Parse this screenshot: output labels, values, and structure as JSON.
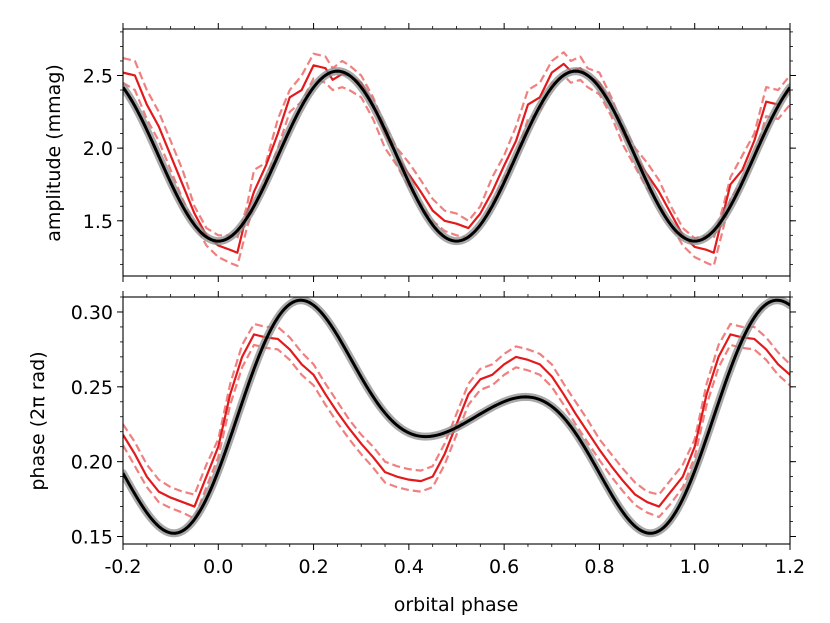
{
  "chart_data": [
    {
      "type": "line",
      "ylabel": "amplitude (mmag)",
      "xlim": [
        -0.2,
        1.2
      ],
      "ylim": [
        1.12,
        2.82
      ],
      "yticks": [
        1.5,
        2.0,
        2.5
      ],
      "ytick_labels": [
        "1.5",
        "2.0",
        "2.5"
      ],
      "xtick_labels_shown": false,
      "series": [
        {
          "role": "observed",
          "color": "#e31a1c",
          "style": "solid",
          "x": [
            -0.2,
            -0.175,
            -0.15,
            -0.125,
            -0.1,
            -0.075,
            -0.05,
            -0.025,
            0.0,
            0.025,
            0.04,
            0.06,
            0.075,
            0.1,
            0.125,
            0.15,
            0.175,
            0.2,
            0.225,
            0.24,
            0.26,
            0.275,
            0.3,
            0.325,
            0.35,
            0.375,
            0.4,
            0.425,
            0.45,
            0.475,
            0.5,
            0.525,
            0.55,
            0.575,
            0.6,
            0.625,
            0.65,
            0.675,
            0.7,
            0.725,
            0.74,
            0.76,
            0.775,
            0.8,
            0.825,
            0.85,
            0.875,
            0.9,
            0.925,
            0.95,
            0.975,
            1.0,
            1.025,
            1.04,
            1.06,
            1.075,
            1.1,
            1.125,
            1.15,
            1.175,
            1.2
          ],
          "y": [
            2.52,
            2.5,
            2.3,
            2.15,
            1.95,
            1.75,
            1.55,
            1.4,
            1.33,
            1.3,
            1.28,
            1.55,
            1.7,
            1.88,
            2.1,
            2.35,
            2.4,
            2.57,
            2.55,
            2.47,
            2.51,
            2.5,
            2.45,
            2.3,
            2.1,
            1.95,
            1.82,
            1.7,
            1.57,
            1.5,
            1.48,
            1.45,
            1.55,
            1.7,
            1.88,
            2.05,
            2.3,
            2.35,
            2.52,
            2.58,
            2.53,
            2.55,
            2.5,
            2.45,
            2.3,
            2.1,
            1.95,
            1.82,
            1.7,
            1.55,
            1.4,
            1.32,
            1.3,
            1.28,
            1.55,
            1.75,
            1.85,
            2.05,
            2.32,
            2.3,
            2.4
          ]
        },
        {
          "role": "observed-upper",
          "color": "#f08080",
          "style": "dashed",
          "x": [
            -0.2,
            -0.175,
            -0.15,
            -0.125,
            -0.1,
            -0.075,
            -0.05,
            -0.025,
            0.0,
            0.025,
            0.04,
            0.06,
            0.075,
            0.1,
            0.125,
            0.15,
            0.175,
            0.2,
            0.225,
            0.24,
            0.26,
            0.275,
            0.3,
            0.325,
            0.35,
            0.375,
            0.4,
            0.425,
            0.45,
            0.475,
            0.5,
            0.525,
            0.55,
            0.575,
            0.6,
            0.625,
            0.65,
            0.675,
            0.7,
            0.725,
            0.74,
            0.76,
            0.775,
            0.8,
            0.825,
            0.85,
            0.875,
            0.9,
            0.925,
            0.95,
            0.975,
            1.0,
            1.025,
            1.04,
            1.06,
            1.075,
            1.1,
            1.125,
            1.15,
            1.175,
            1.2
          ],
          "y": [
            2.62,
            2.6,
            2.4,
            2.25,
            2.05,
            1.85,
            1.6,
            1.45,
            1.4,
            1.4,
            1.38,
            1.6,
            1.85,
            1.9,
            2.2,
            2.4,
            2.5,
            2.65,
            2.63,
            2.55,
            2.6,
            2.57,
            2.5,
            2.35,
            2.15,
            2.0,
            1.9,
            1.78,
            1.65,
            1.57,
            1.55,
            1.5,
            1.6,
            1.8,
            1.95,
            2.15,
            2.4,
            2.45,
            2.6,
            2.66,
            2.6,
            2.63,
            2.55,
            2.52,
            2.35,
            2.15,
            2.0,
            1.9,
            1.78,
            1.6,
            1.45,
            1.38,
            1.4,
            1.38,
            1.6,
            1.8,
            1.95,
            2.1,
            2.42,
            2.4,
            2.5
          ]
        },
        {
          "role": "observed-lower",
          "color": "#f08080",
          "style": "dashed",
          "x": [
            -0.2,
            -0.175,
            -0.15,
            -0.125,
            -0.1,
            -0.075,
            -0.05,
            -0.025,
            0.0,
            0.025,
            0.04,
            0.06,
            0.075,
            0.1,
            0.125,
            0.15,
            0.175,
            0.2,
            0.225,
            0.24,
            0.26,
            0.275,
            0.3,
            0.325,
            0.35,
            0.375,
            0.4,
            0.425,
            0.45,
            0.475,
            0.5,
            0.525,
            0.55,
            0.575,
            0.6,
            0.625,
            0.65,
            0.675,
            0.7,
            0.725,
            0.74,
            0.76,
            0.775,
            0.8,
            0.825,
            0.85,
            0.875,
            0.9,
            0.925,
            0.95,
            0.975,
            1.0,
            1.025,
            1.04,
            1.06,
            1.075,
            1.1,
            1.125,
            1.15,
            1.175,
            1.2
          ],
          "y": [
            2.45,
            2.4,
            2.2,
            2.05,
            1.85,
            1.65,
            1.48,
            1.33,
            1.25,
            1.21,
            1.19,
            1.45,
            1.6,
            1.8,
            2.0,
            2.25,
            2.32,
            2.48,
            2.45,
            2.4,
            2.42,
            2.4,
            2.35,
            2.2,
            2.0,
            1.88,
            1.73,
            1.62,
            1.5,
            1.43,
            1.4,
            1.38,
            1.47,
            1.62,
            1.8,
            1.95,
            2.2,
            2.25,
            2.45,
            2.5,
            2.45,
            2.47,
            2.42,
            2.37,
            2.22,
            2.02,
            1.87,
            1.72,
            1.62,
            1.47,
            1.33,
            1.25,
            1.21,
            1.19,
            1.45,
            1.65,
            1.78,
            1.95,
            2.22,
            2.2,
            2.3
          ]
        },
        {
          "role": "model",
          "color": "#000000",
          "style": "solid-with-grey-halo",
          "mean": 1.945,
          "amplitude": 0.585,
          "frequency": 2,
          "phase_offset": -0.015,
          "y_at_endpoints": [
            2.47,
            2.42
          ]
        }
      ]
    },
    {
      "type": "line",
      "xlabel": "orbital phase",
      "ylabel": "phase (2π rad)",
      "xlim": [
        -0.2,
        1.2
      ],
      "ylim": [
        0.145,
        0.31
      ],
      "yticks": [
        0.15,
        0.2,
        0.25,
        0.3
      ],
      "ytick_labels": [
        "0.15",
        "0.20",
        "0.25",
        "0.30"
      ],
      "xticks": [
        -0.2,
        0.0,
        0.2,
        0.4,
        0.6,
        0.8,
        1.0,
        1.2
      ],
      "xtick_labels": [
        "-0.2",
        "0.0",
        "0.2",
        "0.4",
        "0.6",
        "0.8",
        "1.0",
        "1.2"
      ],
      "series": [
        {
          "role": "observed",
          "color": "#e31a1c",
          "style": "solid",
          "x": [
            -0.2,
            -0.175,
            -0.15,
            -0.125,
            -0.1,
            -0.075,
            -0.05,
            -0.025,
            0.0,
            0.025,
            0.05,
            0.075,
            0.1,
            0.125,
            0.15,
            0.175,
            0.2,
            0.225,
            0.25,
            0.275,
            0.3,
            0.325,
            0.35,
            0.375,
            0.4,
            0.425,
            0.45,
            0.475,
            0.5,
            0.525,
            0.55,
            0.575,
            0.6,
            0.625,
            0.65,
            0.675,
            0.7,
            0.725,
            0.75,
            0.775,
            0.8,
            0.825,
            0.85,
            0.875,
            0.9,
            0.925,
            0.95,
            0.975,
            1.0,
            1.025,
            1.05,
            1.075,
            1.1,
            1.125,
            1.15,
            1.175,
            1.2
          ],
          "y": [
            0.218,
            0.205,
            0.19,
            0.18,
            0.176,
            0.173,
            0.17,
            0.19,
            0.21,
            0.245,
            0.27,
            0.285,
            0.283,
            0.282,
            0.275,
            0.265,
            0.258,
            0.245,
            0.233,
            0.222,
            0.212,
            0.203,
            0.193,
            0.19,
            0.188,
            0.187,
            0.19,
            0.205,
            0.225,
            0.245,
            0.255,
            0.258,
            0.265,
            0.27,
            0.268,
            0.265,
            0.257,
            0.245,
            0.232,
            0.22,
            0.208,
            0.197,
            0.187,
            0.178,
            0.173,
            0.17,
            0.18,
            0.19,
            0.21,
            0.245,
            0.27,
            0.285,
            0.283,
            0.282,
            0.275,
            0.265,
            0.258
          ]
        },
        {
          "role": "observed-upper",
          "color": "#f08080",
          "style": "dashed",
          "x": [
            -0.2,
            -0.175,
            -0.15,
            -0.125,
            -0.1,
            -0.075,
            -0.05,
            -0.025,
            0.0,
            0.025,
            0.05,
            0.075,
            0.1,
            0.125,
            0.15,
            0.175,
            0.2,
            0.225,
            0.25,
            0.275,
            0.3,
            0.325,
            0.35,
            0.375,
            0.4,
            0.425,
            0.45,
            0.475,
            0.5,
            0.525,
            0.55,
            0.575,
            0.6,
            0.625,
            0.65,
            0.675,
            0.7,
            0.725,
            0.75,
            0.775,
            0.8,
            0.825,
            0.85,
            0.875,
            0.9,
            0.925,
            0.95,
            0.975,
            1.0,
            1.025,
            1.05,
            1.075,
            1.1,
            1.125,
            1.15,
            1.175,
            1.2
          ],
          "y": [
            0.225,
            0.213,
            0.198,
            0.188,
            0.183,
            0.18,
            0.178,
            0.198,
            0.215,
            0.252,
            0.278,
            0.292,
            0.29,
            0.29,
            0.283,
            0.273,
            0.265,
            0.252,
            0.24,
            0.228,
            0.218,
            0.21,
            0.2,
            0.197,
            0.195,
            0.194,
            0.197,
            0.212,
            0.232,
            0.252,
            0.262,
            0.265,
            0.272,
            0.277,
            0.275,
            0.272,
            0.265,
            0.252,
            0.24,
            0.228,
            0.215,
            0.205,
            0.195,
            0.186,
            0.18,
            0.178,
            0.188,
            0.198,
            0.215,
            0.252,
            0.278,
            0.292,
            0.29,
            0.29,
            0.283,
            0.273,
            0.265
          ]
        },
        {
          "role": "observed-lower",
          "color": "#f08080",
          "style": "dashed",
          "x": [
            -0.2,
            -0.175,
            -0.15,
            -0.125,
            -0.1,
            -0.075,
            -0.05,
            -0.025,
            0.0,
            0.025,
            0.05,
            0.075,
            0.1,
            0.125,
            0.15,
            0.175,
            0.2,
            0.225,
            0.25,
            0.275,
            0.3,
            0.325,
            0.35,
            0.375,
            0.4,
            0.425,
            0.45,
            0.475,
            0.5,
            0.525,
            0.55,
            0.575,
            0.6,
            0.625,
            0.65,
            0.675,
            0.7,
            0.725,
            0.75,
            0.775,
            0.8,
            0.825,
            0.85,
            0.875,
            0.9,
            0.925,
            0.95,
            0.975,
            1.0,
            1.025,
            1.05,
            1.075,
            1.1,
            1.125,
            1.15,
            1.175,
            1.2
          ],
          "y": [
            0.211,
            0.197,
            0.183,
            0.173,
            0.169,
            0.166,
            0.162,
            0.183,
            0.203,
            0.238,
            0.263,
            0.278,
            0.276,
            0.275,
            0.268,
            0.258,
            0.251,
            0.238,
            0.226,
            0.215,
            0.205,
            0.196,
            0.186,
            0.183,
            0.181,
            0.18,
            0.183,
            0.198,
            0.218,
            0.238,
            0.248,
            0.251,
            0.258,
            0.263,
            0.261,
            0.258,
            0.25,
            0.238,
            0.225,
            0.213,
            0.201,
            0.19,
            0.18,
            0.171,
            0.166,
            0.163,
            0.172,
            0.183,
            0.203,
            0.238,
            0.263,
            0.278,
            0.276,
            0.275,
            0.268,
            0.258,
            0.251
          ]
        },
        {
          "role": "model",
          "color": "#000000",
          "style": "solid-with-grey-halo",
          "harmonics": "y = 0.23 + 0.039*sin(2*pi*(x-0.04)) + 0.045*sin(4*pi*(x-0.04)) + 0.007*sin(6*pi*(x-0.04))"
        }
      ]
    }
  ]
}
